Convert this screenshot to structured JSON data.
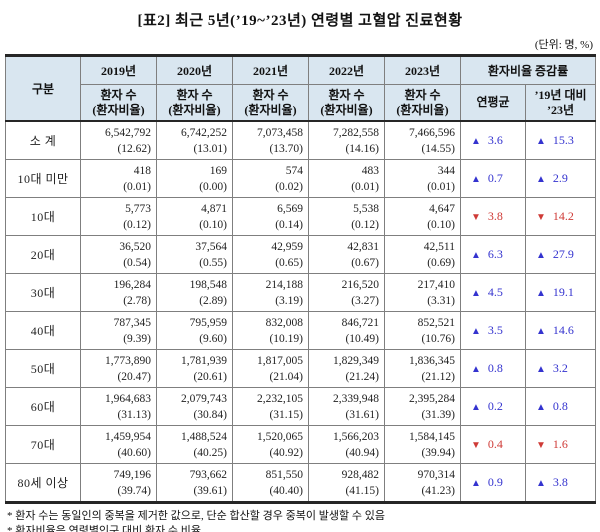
{
  "title": "[표2] 최근 5년(’19~’23년) 연령별 고혈압 진료현황",
  "unit_note": "(단위: 명, %)",
  "icons": {
    "up_arrow": "▲",
    "down_arrow": "▼"
  },
  "colors": {
    "increase": "#3433cf",
    "decrease": "#cf3a36",
    "header_bg": "#d9e6f0"
  },
  "table": {
    "category_header": "구분",
    "year_headers": [
      "2019년",
      "2020년",
      "2021년",
      "2022년",
      "2023년"
    ],
    "sub_header": {
      "line1": "환자 수",
      "line2": "(환자비율)"
    },
    "change_group_label": "환자비율 증감률",
    "change_headers": {
      "annual_avg": "연평균",
      "vs_line1": "’19년 대비",
      "vs_line2": "’23년"
    },
    "rows": [
      {
        "label": "소 계",
        "counts": [
          "6,542,792",
          "6,742,252",
          "7,073,458",
          "7,282,558",
          "7,466,596"
        ],
        "ratios": [
          "(12.62)",
          "(13.01)",
          "(13.70)",
          "(14.16)",
          "(14.55)"
        ],
        "annual_avg": {
          "direction": "up",
          "value": "3.6"
        },
        "vs_19_23": {
          "direction": "up",
          "value": "15.3"
        }
      },
      {
        "label": "10대 미만",
        "counts": [
          "418",
          "169",
          "574",
          "483",
          "344"
        ],
        "ratios": [
          "(0.01)",
          "(0.00)",
          "(0.02)",
          "(0.01)",
          "(0.01)"
        ],
        "annual_avg": {
          "direction": "up",
          "value": "0.7"
        },
        "vs_19_23": {
          "direction": "up",
          "value": "2.9"
        }
      },
      {
        "label": "10대",
        "counts": [
          "5,773",
          "4,871",
          "6,569",
          "5,538",
          "4,647"
        ],
        "ratios": [
          "(0.12)",
          "(0.10)",
          "(0.14)",
          "(0.12)",
          "(0.10)"
        ],
        "annual_avg": {
          "direction": "down",
          "value": "3.8"
        },
        "vs_19_23": {
          "direction": "down",
          "value": "14.2"
        }
      },
      {
        "label": "20대",
        "counts": [
          "36,520",
          "37,564",
          "42,959",
          "42,831",
          "42,511"
        ],
        "ratios": [
          "(0.54)",
          "(0.55)",
          "(0.65)",
          "(0.67)",
          "(0.69)"
        ],
        "annual_avg": {
          "direction": "up",
          "value": "6.3"
        },
        "vs_19_23": {
          "direction": "up",
          "value": "27.9"
        }
      },
      {
        "label": "30대",
        "counts": [
          "196,284",
          "198,548",
          "214,188",
          "216,520",
          "217,410"
        ],
        "ratios": [
          "(2.78)",
          "(2.89)",
          "(3.19)",
          "(3.27)",
          "(3.31)"
        ],
        "annual_avg": {
          "direction": "up",
          "value": "4.5"
        },
        "vs_19_23": {
          "direction": "up",
          "value": "19.1"
        }
      },
      {
        "label": "40대",
        "counts": [
          "787,345",
          "795,959",
          "832,008",
          "846,721",
          "852,521"
        ],
        "ratios": [
          "(9.39)",
          "(9.60)",
          "(10.19)",
          "(10.49)",
          "(10.76)"
        ],
        "annual_avg": {
          "direction": "up",
          "value": "3.5"
        },
        "vs_19_23": {
          "direction": "up",
          "value": "14.6"
        }
      },
      {
        "label": "50대",
        "counts": [
          "1,773,890",
          "1,781,939",
          "1,817,005",
          "1,829,349",
          "1,836,345"
        ],
        "ratios": [
          "(20.47)",
          "(20.61)",
          "(21.04)",
          "(21.24)",
          "(21.12)"
        ],
        "annual_avg": {
          "direction": "up",
          "value": "0.8"
        },
        "vs_19_23": {
          "direction": "up",
          "value": "3.2"
        }
      },
      {
        "label": "60대",
        "counts": [
          "1,964,683",
          "2,079,743",
          "2,232,105",
          "2,339,948",
          "2,395,284"
        ],
        "ratios": [
          "(31.13)",
          "(30.84)",
          "(31.15)",
          "(31.61)",
          "(31.39)"
        ],
        "annual_avg": {
          "direction": "up",
          "value": "0.2"
        },
        "vs_19_23": {
          "direction": "up",
          "value": "0.8"
        }
      },
      {
        "label": "70대",
        "counts": [
          "1,459,954",
          "1,488,524",
          "1,520,065",
          "1,566,203",
          "1,584,145"
        ],
        "ratios": [
          "(40.60)",
          "(40.25)",
          "(40.92)",
          "(40.94)",
          "(39.94)"
        ],
        "annual_avg": {
          "direction": "down",
          "value": "0.4"
        },
        "vs_19_23": {
          "direction": "down",
          "value": "1.6"
        }
      },
      {
        "label": "80세 이상",
        "counts": [
          "749,196",
          "793,662",
          "851,550",
          "928,482",
          "970,314"
        ],
        "ratios": [
          "(39.74)",
          "(39.61)",
          "(40.40)",
          "(41.15)",
          "(41.23)"
        ],
        "annual_avg": {
          "direction": "up",
          "value": "0.9"
        },
        "vs_19_23": {
          "direction": "up",
          "value": "3.8"
        }
      }
    ]
  },
  "footnotes": [
    "* 환자 수는 동일인의 중복을 제거한 값으로, 단순 합산할 경우 중복이 발생할 수 있음",
    "* 환자비율은 연령별인구 대비 환자 수 비율"
  ]
}
